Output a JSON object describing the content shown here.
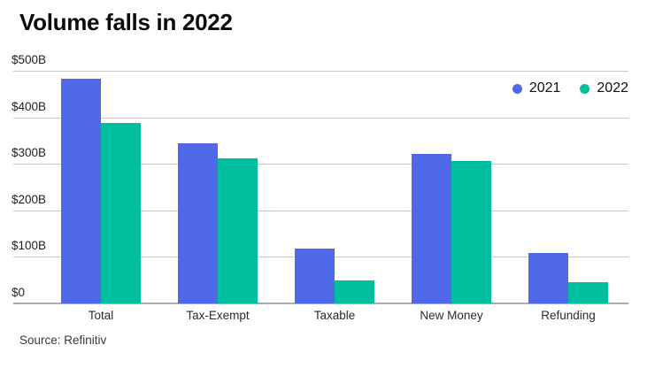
{
  "header": {
    "title": "Volume falls in 2022"
  },
  "footer": {
    "source": "Source: Refinitiv"
  },
  "colors": {
    "series_2021": "#5069e8",
    "series_2022": "#00bf9e",
    "gridline": "#c9c9c9",
    "baseline": "#ababab",
    "title_text": "#0c0c0c"
  },
  "chart_data": {
    "type": "bar",
    "title": "Volume falls in 2022",
    "categories": [
      "Total",
      "Tax-Exempt",
      "Taxable",
      "New Money",
      "Refunding"
    ],
    "series": [
      {
        "name": "2021",
        "color": "#5069e8",
        "values": [
          483,
          345,
          117,
          321,
          108
        ]
      },
      {
        "name": "2022",
        "color": "#00bf9e",
        "values": [
          387,
          311,
          50,
          307,
          45
        ]
      }
    ],
    "xlabel": "",
    "ylabel": "",
    "ylim": [
      0,
      500
    ],
    "yticks": [
      {
        "value": 500,
        "label": "$500B"
      },
      {
        "value": 400,
        "label": "$400B"
      },
      {
        "value": 300,
        "label": "$300B"
      },
      {
        "value": 200,
        "label": "$200B"
      },
      {
        "value": 100,
        "label": "$100B"
      },
      {
        "value": 0,
        "label": "$0"
      }
    ],
    "grid": true,
    "legend_position": "top-right",
    "source": "Source: Refinitiv"
  }
}
